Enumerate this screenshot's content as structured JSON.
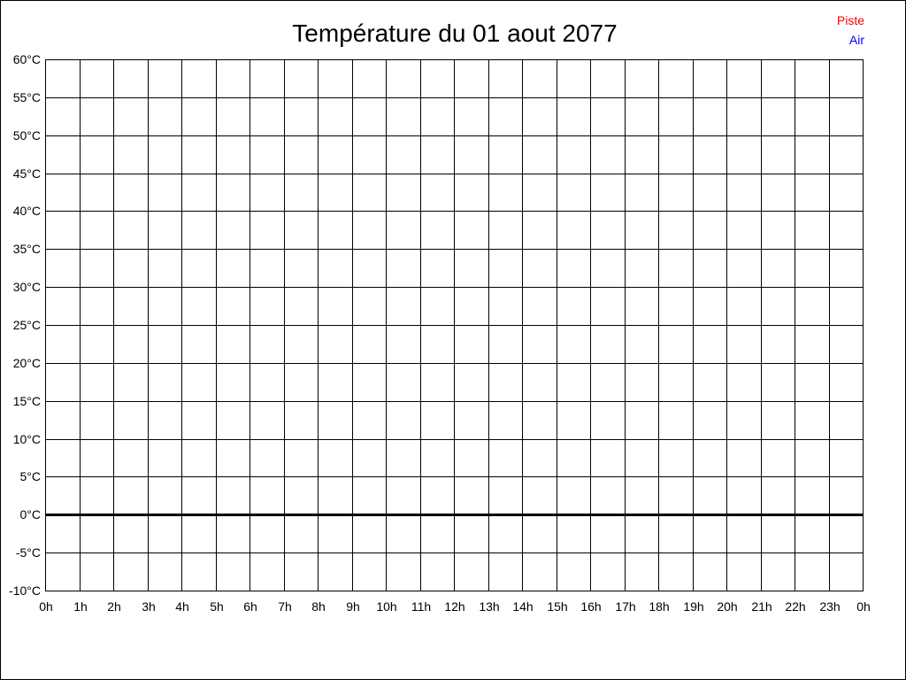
{
  "chart_data": {
    "type": "line",
    "title": "Température du 01 aout 2077",
    "xlabel": "",
    "ylabel": "",
    "x_ticks": [
      "0h",
      "1h",
      "2h",
      "3h",
      "4h",
      "5h",
      "6h",
      "7h",
      "8h",
      "9h",
      "10h",
      "11h",
      "12h",
      "13h",
      "14h",
      "15h",
      "16h",
      "17h",
      "18h",
      "19h",
      "20h",
      "21h",
      "22h",
      "23h",
      "0h"
    ],
    "y_ticks": [
      "60°C",
      "55°C",
      "50°C",
      "45°C",
      "40°C",
      "35°C",
      "30°C",
      "25°C",
      "20°C",
      "15°C",
      "10°C",
      "5°C",
      "0°C",
      "-5°C",
      "-10°C"
    ],
    "ylim": [
      -10,
      60
    ],
    "xlim_hours": [
      0,
      24
    ],
    "grid": true,
    "legend_placement": "top-right",
    "series": [
      {
        "name": "Piste",
        "color": "#ff0000",
        "values": []
      },
      {
        "name": "Air",
        "color": "#0000ff",
        "values": []
      }
    ],
    "zero_line_color": "#000000"
  }
}
